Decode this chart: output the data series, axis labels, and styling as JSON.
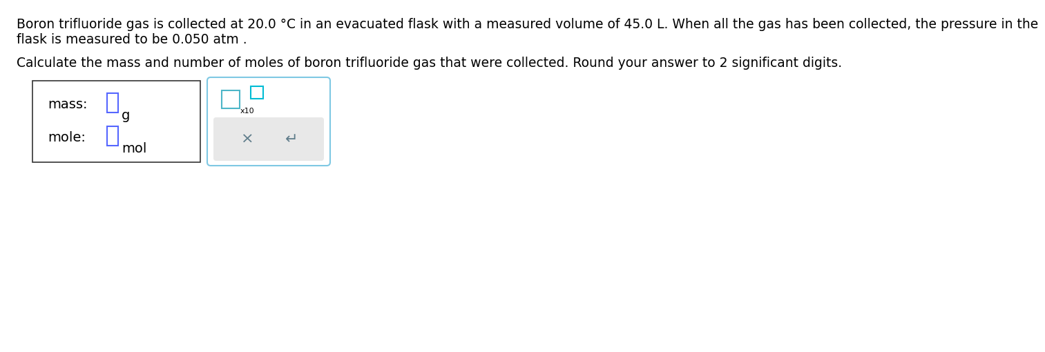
{
  "line1": "Boron trifluoride gas is collected at 20.0 °C in an evacuated flask with a measured volume of 45.0 L. When all the gas has been collected, the pressure in the",
  "line2": "flask is measured to be 0.050 atm .",
  "line3": "Calculate the mass and number of moles of boron trifluoride gas that were collected. Round your answer to 2 significant digits.",
  "label_mass": "mass:",
  "label_mole": "mole:",
  "unit_g": "g",
  "unit_mol": "mol",
  "x10_label": "x10",
  "x_symbol": "×",
  "undo_symbol": "↵",
  "bg_color": "#ffffff",
  "box1_edge_color": "#333333",
  "box2_edge_color": "#7ec8e3",
  "input_box_color": "#5566ff",
  "cyan_box_color": "#00bcd4",
  "button_area_color": "#e8e8e8",
  "text_color": "#000000",
  "button_text_color": "#607d8b",
  "font_size_body": 13.5,
  "font_size_labels": 14,
  "font_size_small": 8,
  "font_size_buttons": 16
}
